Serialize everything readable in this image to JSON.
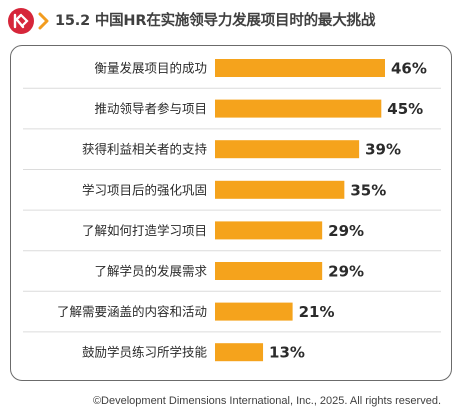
{
  "header": {
    "title": "15.2 中国HR在实施领导力发展项目时的最大挑战",
    "logo_icon": "ddi-logo-icon",
    "chevron_icon": "chevron-right-icon",
    "logo_color": "#d6263a",
    "chevron_color": "#f29c1f"
  },
  "chart_data": {
    "type": "bar",
    "orientation": "horizontal",
    "categories": [
      "衡量发展项目的成功",
      "推动领导者参与项目",
      "获得利益相关者的支持",
      "学习项目后的强化巩固",
      "了解如何打造学习项目",
      "了解学员的发展需求",
      "了解需要涵盖的内容和活动",
      "鼓励学员练习所学技能"
    ],
    "values": [
      46,
      45,
      39,
      35,
      29,
      29,
      21,
      13
    ],
    "value_labels": [
      "46%",
      "45%",
      "39%",
      "35%",
      "29%",
      "29%",
      "21%",
      "13%"
    ],
    "unit": "%",
    "bar_color": "#f5a31c",
    "xlim": [
      0,
      46
    ],
    "grid": false,
    "legend": "none"
  },
  "footer": {
    "copyright": "©Development Dimensions International, Inc., 2025. All rights reserved."
  }
}
